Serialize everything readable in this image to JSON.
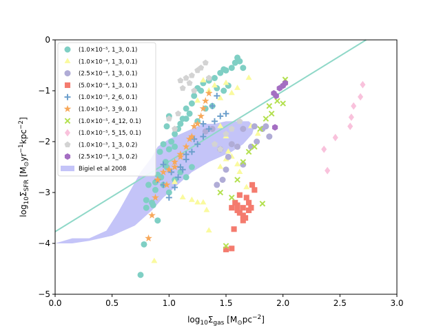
{
  "chart_data": {
    "type": "scatter",
    "title": "",
    "xlabel_main": "log",
    "xlabel_sub": "10",
    "xlabel_sigma": "Σ",
    "xlabel_sigma_sub": "gas",
    "xlabel_units": " [M",
    "xlabel_units_sub": "⊙",
    "xlabel_units_rest": "pc",
    "xlabel_units_sup": "−2",
    "xlabel_units_close": "]",
    "ylabel_main": "log",
    "ylabel_sub": "10",
    "ylabel_sigma": "Σ",
    "ylabel_sigma_sub": "SFR",
    "ylabel_units": " [M",
    "ylabel_units_sub": "⊙",
    "ylabel_units_rest": "yr",
    "ylabel_units_sup1": "−1",
    "ylabel_units_rest2": "kpc",
    "ylabel_units_sup2": "−2",
    "ylabel_units_close": "]",
    "xlim": [
      0.0,
      3.0
    ],
    "ylim": [
      -5,
      0
    ],
    "xticks": [
      "0.0",
      "0.5",
      "1.0",
      "1.5",
      "2.0",
      "2.5",
      "3.0"
    ],
    "xtick_values": [
      0.0,
      0.5,
      1.0,
      1.5,
      2.0,
      2.5,
      3.0
    ],
    "yticks": [
      "0",
      "−1",
      "−2",
      "−3",
      "−4",
      "−5"
    ],
    "ytick_values": [
      0,
      -1,
      -2,
      -3,
      -4,
      -5
    ],
    "grid": false,
    "legend_position": "upper-left",
    "fit_line": {
      "x": [
        0.0,
        2.73
      ],
      "y": [
        -3.77,
        0.0
      ],
      "color": "#8fd8c8"
    },
    "region": {
      "name": "Bigiel et al 2008",
      "color": "#c4c4f8",
      "polygon_x": [
        0.0,
        0.15,
        0.3,
        0.45,
        0.55,
        0.65,
        0.75,
        0.85,
        0.9,
        1.0,
        1.1,
        1.2,
        1.25,
        1.3,
        1.4,
        1.5,
        1.6,
        1.7,
        1.75,
        1.73,
        1.65,
        1.55,
        1.45,
        1.35,
        1.2,
        1.05,
        0.95,
        0.85,
        0.7,
        0.5,
        0.3,
        0.15,
        0.0
      ],
      "polygon_y": [
        -4.0,
        -3.9,
        -3.9,
        -3.75,
        -3.4,
        -3.0,
        -2.6,
        -2.3,
        -2.1,
        -1.95,
        -1.85,
        -1.75,
        -1.7,
        -1.65,
        -1.65,
        -1.6,
        -1.6,
        -1.6,
        -1.7,
        -1.85,
        -2.05,
        -2.2,
        -2.3,
        -2.4,
        -2.6,
        -2.9,
        -3.1,
        -3.35,
        -3.65,
        -3.85,
        -3.95,
        -4.0,
        -4.0
      ]
    },
    "series": [
      {
        "name": "(1.0×10⁻⁵, 1_3, 0.1)",
        "marker": "circle",
        "color": "#7fcfc4",
        "x": [
          0.75,
          0.78,
          0.8,
          0.85,
          0.88,
          0.9,
          0.92,
          0.95,
          0.97,
          1.0,
          1.02,
          1.05,
          1.08,
          1.1,
          1.12,
          1.15,
          1.18,
          1.2,
          1.22,
          1.25,
          1.28,
          1.3,
          1.35,
          1.4,
          1.45,
          1.5,
          1.55,
          1.6,
          1.65,
          1.52,
          1.48,
          1.42,
          1.38,
          1.32,
          1.25,
          1.15,
          1.05,
          0.98,
          0.93,
          0.88,
          0.82,
          0.8,
          0.86,
          0.9,
          0.95,
          1.0,
          1.05,
          1.1,
          1.15,
          1.2,
          1.0,
          0.98,
          1.62,
          1.58,
          1.48
        ],
        "y": [
          -4.62,
          -4.02,
          -3.15,
          -3.2,
          -2.95,
          -3.55,
          -2.2,
          -2.05,
          -2.4,
          -2.15,
          -2.0,
          -1.85,
          -1.75,
          -1.65,
          -1.55,
          -1.35,
          -1.45,
          -1.25,
          -1.1,
          -0.95,
          -1.0,
          -0.85,
          -0.8,
          -0.75,
          -0.65,
          -0.6,
          -0.55,
          -0.35,
          -0.55,
          -0.9,
          -1.0,
          -0.95,
          -1.3,
          -1.35,
          -1.6,
          -1.55,
          -2.1,
          -2.5,
          -2.7,
          -2.8,
          -2.85,
          -3.3,
          -3.25,
          -2.65,
          -2.85,
          -3.0,
          -2.75,
          -2.6,
          -2.7,
          -2.5,
          -1.5,
          -1.7,
          -0.42,
          -0.45,
          -0.58
        ]
      },
      {
        "name": "(1.0×10⁻⁴, 1_3, 0.1)",
        "marker": "triangle",
        "color": "#fafa9e",
        "x": [
          0.87,
          1.05,
          1.12,
          1.2,
          1.25,
          1.3,
          1.33,
          1.35,
          1.45,
          1.5,
          1.52,
          1.55,
          1.6,
          1.62,
          1.68,
          1.72,
          1.78,
          1.7,
          1.6,
          1.55,
          1.5,
          1.45,
          1.4,
          1.35,
          1.3,
          1.25,
          1.45,
          1.5,
          1.6
        ],
        "y": [
          -4.35,
          -2.8,
          -3.1,
          -3.15,
          -3.2,
          -3.2,
          -3.35,
          -3.75,
          -2.5,
          -2.35,
          -2.2,
          -2.3,
          -2.45,
          -2.6,
          -2.9,
          -1.7,
          -1.85,
          -0.75,
          -0.95,
          -1.05,
          -0.85,
          -1.15,
          -0.9,
          -1.0,
          -0.8,
          -1.2,
          -1.7,
          -1.9,
          -2.1
        ]
      },
      {
        "name": "(2.5×10⁻⁴, 1_3, 0.1)",
        "marker": "circle",
        "color": "#b0acd6",
        "x": [
          1.42,
          1.47,
          1.5,
          1.52,
          1.6,
          1.65,
          1.72,
          1.77,
          1.82,
          1.85,
          1.88,
          1.75,
          1.65,
          1.55,
          1.45,
          1.38,
          1.32
        ],
        "y": [
          -2.85,
          -2.75,
          -2.55,
          -2.3,
          -2.1,
          -2.45,
          -2.1,
          -2.0,
          -1.75,
          -1.7,
          -1.9,
          -1.7,
          -1.75,
          -2.05,
          -2.15,
          -1.75,
          -1.8
        ]
      },
      {
        "name": "(5.0×10⁻⁴, 1_3, 0.1)",
        "marker": "square",
        "color": "#f47b6e",
        "x": [
          1.5,
          1.55,
          1.57,
          1.6,
          1.62,
          1.65,
          1.67,
          1.7,
          1.72,
          1.75,
          1.62,
          1.58,
          1.65,
          1.7,
          1.68,
          1.73,
          1.6,
          1.55,
          1.65,
          1.72
        ],
        "y": [
          -4.12,
          -4.1,
          -3.72,
          -3.35,
          -3.4,
          -3.3,
          -3.5,
          -3.2,
          -3.3,
          -2.95,
          -3.05,
          -3.2,
          -3.45,
          -3.35,
          -3.1,
          -2.85,
          -3.25,
          -3.3,
          -3.55,
          -3.3
        ]
      },
      {
        "name": "(1.0×10⁻⁵, 2_6, 0.1)",
        "marker": "plus",
        "color": "#6c9fcc",
        "x": [
          0.9,
          0.95,
          1.0,
          1.05,
          1.08,
          1.12,
          1.15,
          1.2,
          1.25,
          1.3,
          1.35,
          1.4,
          1.45,
          1.5,
          1.42,
          1.38,
          1.3,
          1.22,
          1.15,
          1.1,
          1.02,
          0.95
        ],
        "y": [
          -2.75,
          -2.85,
          -3.1,
          -2.9,
          -2.7,
          -2.55,
          -2.35,
          -2.2,
          -2.05,
          -1.9,
          -1.75,
          -1.6,
          -1.5,
          -1.45,
          -1.1,
          -1.3,
          -1.65,
          -1.95,
          -2.25,
          -2.5,
          -2.6,
          -2.45
        ]
      },
      {
        "name": "(1.0×10⁻⁵, 3_9, 0.1)",
        "marker": "star",
        "color": "#f7a85a",
        "x": [
          0.82,
          0.85,
          0.88,
          0.9,
          0.95,
          1.0,
          1.05,
          1.1,
          1.15,
          1.2,
          1.25,
          1.28,
          1.32,
          1.35,
          1.3,
          1.22,
          1.18,
          1.1,
          1.05,
          0.98
        ],
        "y": [
          -3.9,
          -3.45,
          -3.1,
          -2.75,
          -2.6,
          -2.55,
          -2.4,
          -2.25,
          -2.1,
          -1.9,
          -1.65,
          -1.5,
          -1.2,
          -1.05,
          -1.35,
          -1.7,
          -1.95,
          -2.3,
          -2.5,
          -2.85
        ]
      },
      {
        "name": "(1.0×10⁻⁵, 4_12, 0.1)",
        "marker": "x",
        "color": "#b3e04f",
        "x": [
          1.45,
          1.5,
          1.55,
          1.6,
          1.65,
          1.7,
          1.75,
          1.8,
          1.85,
          1.88,
          1.9,
          1.95,
          2.0,
          2.02,
          1.82
        ],
        "y": [
          -3.0,
          -4.05,
          -3.1,
          -2.75,
          -2.4,
          -2.2,
          -2.1,
          -1.75,
          -1.55,
          -1.3,
          -1.45,
          -1.2,
          -1.25,
          -0.78,
          -3.22
        ]
      },
      {
        "name": "(1.0×10⁻⁵, 5_15, 0.1)",
        "marker": "diamond",
        "color": "#f9c2dc",
        "x": [
          2.36,
          2.39,
          2.46,
          2.59,
          2.6,
          2.62,
          2.68,
          2.7
        ],
        "y": [
          -2.15,
          -2.57,
          -1.92,
          -1.7,
          -1.52,
          -1.3,
          -1.12,
          -0.88
        ]
      },
      {
        "name": "(1.0×10⁻⁵, 1_3, 0.2)",
        "marker": "pentagon",
        "color": "#d3d3d3",
        "x": [
          1.0,
          1.05,
          1.1,
          1.12,
          1.15,
          1.2,
          1.25,
          1.28,
          1.32,
          1.35,
          1.4,
          1.45,
          1.5,
          1.55,
          1.62,
          1.18,
          1.22,
          1.08
        ],
        "y": [
          -1.55,
          -1.75,
          -0.8,
          -0.95,
          -0.75,
          -0.7,
          -0.6,
          -0.55,
          -0.45,
          -0.75,
          -2.05,
          -2.15,
          -1.85,
          -1.75,
          -1.6,
          -0.85,
          -1.0,
          -1.45
        ]
      },
      {
        "name": "(2.5×10⁻⁴, 1_3, 0.2)",
        "marker": "hexagon",
        "color": "#a46ec2",
        "x": [
          1.92,
          1.94,
          1.97,
          2.0,
          2.02,
          1.93
        ],
        "y": [
          -1.05,
          -1.1,
          -0.95,
          -0.9,
          -0.85,
          -1.72
        ]
      }
    ]
  }
}
